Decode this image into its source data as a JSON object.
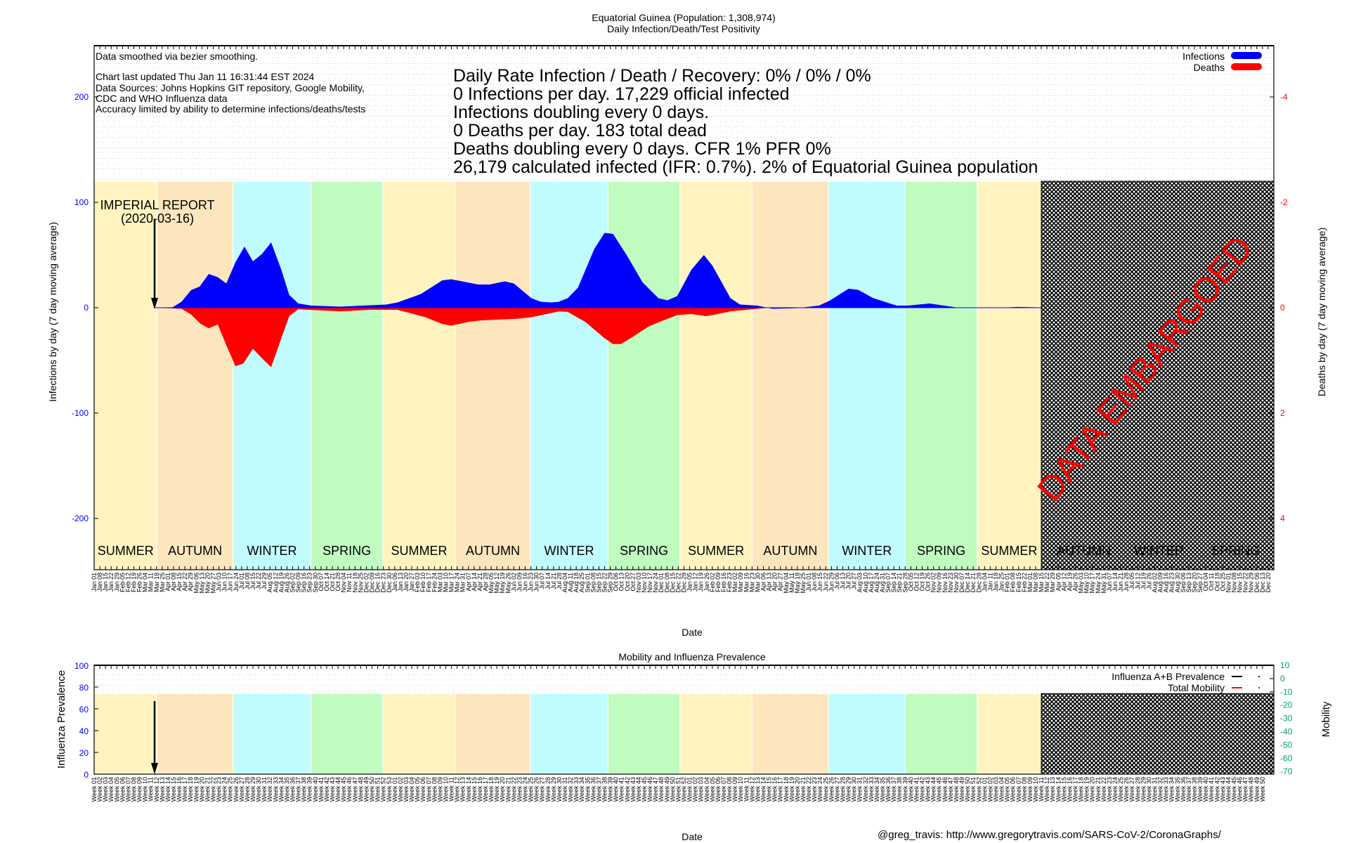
{
  "chart_data": [
    {
      "type": "area",
      "title": "Equatorial Guinea (Population: 1,308,974)",
      "subtitle": "Daily Infection/Death/Test Positivity",
      "xlabel": "Date",
      "ylabel": "Infections by day (7 day moving average)",
      "y2label": "Deaths by day (7 day moving average)",
      "x_unit": "weeks since 2020-01-01",
      "xlim": [
        0,
        208
      ],
      "ylim": [
        -250,
        245
      ],
      "y2lim": [
        5,
        -4.9
      ],
      "yticks": [
        "200",
        "100",
        "0",
        "-100",
        "-200"
      ],
      "ytick_values": [
        200,
        100,
        0,
        -100,
        -200
      ],
      "y2ticks": [
        "-4",
        "-2",
        "0",
        "2",
        "4"
      ],
      "y2tick_values": [
        -4,
        -2,
        0,
        2,
        4
      ],
      "grid": true,
      "legend_position": "top-right",
      "legend": [
        {
          "label": "Infections",
          "color": "#0000ff"
        },
        {
          "label": "Deaths",
          "color": "#ff0000"
        }
      ],
      "notes": [
        "Data smoothed via bezier smoothing.",
        "Chart last updated Thu Jan 11 16:31:44 EST 2024",
        "Data Sources: Johns Hopkins GIT repository, Google Mobility,",
        "CDC and WHO Influenza data",
        "Accuracy limited by ability to determine infections/deaths/tests"
      ],
      "stats": [
        "Daily Rate Infection / Death / Recovery: 0% / 0% / 0%",
        "0 Infections per day.  17,229 official infected",
        "Infections doubling every 0 days.",
        "0 Deaths per day.  183 total dead",
        "Deaths doubling every 0 days.  CFR 1%  PFR 0%",
        "26,179 calculated infected (IFR: 0.7%).  2% of Equatorial Guinea population"
      ],
      "annotation": {
        "line1": "IMPERIAL REPORT",
        "line2": "(2020-03-16)",
        "week": 10.6
      },
      "embargo": {
        "label": "DATA EMBARGOED",
        "start_week": 167,
        "end_week": 208
      },
      "series": [
        {
          "name": "Infections",
          "color": "#0000ff",
          "points": [
            [
              10.6,
              0
            ],
            [
              13.7,
              0
            ],
            [
              15.4,
              5.6
            ],
            [
              17.1,
              16.7
            ],
            [
              18.6,
              20
            ],
            [
              20.2,
              32
            ],
            [
              21.8,
              29
            ],
            [
              23.3,
              23
            ],
            [
              24.9,
              43
            ],
            [
              26.5,
              58
            ],
            [
              28,
              44
            ],
            [
              29.6,
              51
            ],
            [
              31.2,
              62
            ],
            [
              33,
              36
            ],
            [
              34.4,
              12
            ],
            [
              36,
              4
            ],
            [
              38.3,
              2
            ],
            [
              43.4,
              1
            ],
            [
              51.5,
              3
            ],
            [
              53.5,
              5
            ],
            [
              57.6,
              13
            ],
            [
              61.4,
              26
            ],
            [
              63,
              27
            ],
            [
              67.7,
              22
            ],
            [
              69.7,
              22
            ],
            [
              72.4,
              25
            ],
            [
              74,
              23
            ],
            [
              77.1,
              9
            ],
            [
              78.8,
              5.6
            ],
            [
              80.5,
              5
            ],
            [
              81.9,
              5.6
            ],
            [
              83.5,
              9
            ],
            [
              85.3,
              19
            ],
            [
              88.2,
              56
            ],
            [
              90,
              71
            ],
            [
              91.5,
              70
            ],
            [
              94,
              49
            ],
            [
              96.7,
              24
            ],
            [
              99.5,
              9
            ],
            [
              101.1,
              7
            ],
            [
              102.8,
              11
            ],
            [
              105.3,
              36
            ],
            [
              107.5,
              50
            ],
            [
              109,
              40
            ],
            [
              112.2,
              9
            ],
            [
              113.9,
              3
            ],
            [
              116.9,
              2
            ],
            [
              119.6,
              -1
            ],
            [
              123.7,
              -0.5
            ],
            [
              127.8,
              2
            ],
            [
              129.8,
              7
            ],
            [
              133,
              18
            ],
            [
              134.7,
              17
            ],
            [
              137.4,
              9
            ],
            [
              141.5,
              2
            ],
            [
              143.5,
              2
            ],
            [
              147.3,
              4
            ],
            [
              149.8,
              2
            ],
            [
              152.4,
              0
            ],
            [
              160,
              0
            ],
            [
              162.7,
              0.7
            ],
            [
              166,
              0.4
            ],
            [
              167.4,
              0
            ]
          ]
        },
        {
          "name": "Deaths",
          "color": "#ff0000",
          "points": [
            [
              10.6,
              0
            ],
            [
              15.4,
              0.02
            ],
            [
              17.1,
              0.13
            ],
            [
              18.8,
              0.31
            ],
            [
              20.2,
              0.39
            ],
            [
              21.8,
              0.32
            ],
            [
              23.3,
              0.71
            ],
            [
              24.9,
              1.11
            ],
            [
              26.3,
              1.06
            ],
            [
              28,
              0.78
            ],
            [
              29.6,
              0.96
            ],
            [
              31.2,
              1.13
            ],
            [
              33,
              0.58
            ],
            [
              34.4,
              0.16
            ],
            [
              36,
              0.03
            ],
            [
              43.4,
              0.07
            ],
            [
              48.6,
              0.04
            ],
            [
              53.5,
              0.04
            ],
            [
              58.4,
              0.18
            ],
            [
              61.4,
              0.31
            ],
            [
              63,
              0.34
            ],
            [
              66,
              0.27
            ],
            [
              68.3,
              0.24
            ],
            [
              74.5,
              0.21
            ],
            [
              77.1,
              0.18
            ],
            [
              82,
              0.07
            ],
            [
              83.5,
              0.08
            ],
            [
              86.6,
              0.27
            ],
            [
              90,
              0.58
            ],
            [
              91.5,
              0.69
            ],
            [
              92.9,
              0.69
            ],
            [
              95.3,
              0.53
            ],
            [
              97.7,
              0.36
            ],
            [
              99.7,
              0.27
            ],
            [
              102.8,
              0.14
            ],
            [
              105.3,
              0.12
            ],
            [
              107.9,
              0.16
            ],
            [
              109.5,
              0.13
            ],
            [
              112.2,
              0.07
            ],
            [
              116.9,
              0.02
            ],
            [
              119,
              0
            ]
          ]
        }
      ],
      "seasons": [
        {
          "label": "SUMMER",
          "start": 0,
          "end": 11.1,
          "color": "#fff4c0"
        },
        {
          "label": "AUTUMN",
          "start": 11.1,
          "end": 24.5,
          "color": "#fde6bd"
        },
        {
          "label": "WINTER",
          "start": 24.5,
          "end": 38.2,
          "color": "#c0fbfd"
        },
        {
          "label": "SPRING",
          "start": 38.2,
          "end": 50.9,
          "color": "#c0fcc0"
        },
        {
          "label": "SUMMER",
          "start": 50.9,
          "end": 63.7,
          "color": "#fff4c0"
        },
        {
          "label": "AUTUMN",
          "start": 63.7,
          "end": 76.9,
          "color": "#fde6bd"
        },
        {
          "label": "WINTER",
          "start": 76.9,
          "end": 90.6,
          "color": "#c0fbfd"
        },
        {
          "label": "SPRING",
          "start": 90.6,
          "end": 103.3,
          "color": "#c0fcc0"
        },
        {
          "label": "SUMMER",
          "start": 103.3,
          "end": 116,
          "color": "#fff4c0"
        },
        {
          "label": "AUTUMN",
          "start": 116,
          "end": 129.5,
          "color": "#fde6bd"
        },
        {
          "label": "WINTER",
          "start": 129.5,
          "end": 143,
          "color": "#c0fbfd"
        },
        {
          "label": "SPRING",
          "start": 143,
          "end": 155.7,
          "color": "#c0fcc0"
        },
        {
          "label": "SUMMER",
          "start": 155.7,
          "end": 167,
          "color": "#fff4c0"
        },
        {
          "label": "AUTUMN",
          "start": 168,
          "end": 181,
          "color": "#fde6bd"
        },
        {
          "label": "WINTER",
          "start": 181,
          "end": 194.5,
          "color": "#c0fbfd"
        },
        {
          "label": "SPRING",
          "start": 194.5,
          "end": 208,
          "color": "#c0fcc0"
        }
      ],
      "date_labels": [
        "Jan 01",
        "Jan 08",
        "Jan 15",
        "Jan 22",
        "Jan 29",
        "Feb 05",
        "Feb 12",
        "Feb 19",
        "Feb 26",
        "Mar 04",
        "Mar 11",
        "Mar 18",
        "Mar 25",
        "Apr 01",
        "Apr 08",
        "Apr 15",
        "Apr 22",
        "Apr 29",
        "May 06",
        "May 13",
        "May 20",
        "May 27",
        "Jun 03",
        "Jun 10",
        "Jun 17",
        "Jun 24",
        "Jul 01",
        "Jul 08",
        "Jul 15",
        "Jul 22",
        "Jul 29",
        "Aug 05",
        "Aug 12",
        "Aug 19",
        "Aug 26",
        "Sep 02",
        "Sep 09",
        "Sep 16",
        "Sep 23",
        "Sep 30",
        "Oct 07",
        "Oct 14",
        "Oct 21",
        "Oct 28",
        "Nov 04",
        "Nov 11",
        "Nov 18",
        "Nov 25",
        "Dec 02",
        "Dec 09",
        "Dec 16",
        "Dec 23",
        "Dec 30",
        "Jan 06",
        "Jan 13",
        "Jan 20",
        "Jan 27",
        "Feb 03",
        "Feb 10",
        "Feb 17",
        "Feb 24",
        "Mar 03",
        "Mar 10",
        "Mar 17",
        "Mar 24",
        "Mar 31",
        "Apr 07",
        "Apr 14",
        "Apr 21",
        "Apr 28",
        "May 05",
        "May 12",
        "May 19",
        "May 26",
        "Jun 02",
        "Jun 09",
        "Jun 16",
        "Jun 23",
        "Jun 30",
        "Jul 07",
        "Jul 14",
        "Jul 21",
        "Jul 28",
        "Aug 04",
        "Aug 11",
        "Aug 18",
        "Aug 25",
        "Sep 01",
        "Sep 08",
        "Sep 15",
        "Sep 22",
        "Sep 29",
        "Oct 06",
        "Oct 13",
        "Oct 20",
        "Oct 27",
        "Nov 03",
        "Nov 10",
        "Nov 17",
        "Nov 24",
        "Dec 01",
        "Dec 08",
        "Dec 15",
        "Dec 22",
        "Dec 29",
        "Jan 05",
        "Jan 12",
        "Jan 19",
        "Jan 26",
        "Feb 02",
        "Feb 09",
        "Feb 16",
        "Feb 23",
        "Mar 02",
        "Mar 09",
        "Mar 16",
        "Mar 23",
        "Mar 30",
        "Apr 06",
        "Apr 13",
        "Apr 20",
        "Apr 27",
        "May 04",
        "May 11",
        "May 18",
        "May 25",
        "Jun 01",
        "Jun 08",
        "Jun 15",
        "Jun 22",
        "Jun 29",
        "Jul 06",
        "Jul 13",
        "Jul 20",
        "Jul 27",
        "Aug 03",
        "Aug 10",
        "Aug 17",
        "Aug 24",
        "Aug 31",
        "Sep 07",
        "Sep 14",
        "Sep 21",
        "Sep 28",
        "Oct 05",
        "Oct 12",
        "Oct 19",
        "Oct 26",
        "Nov 02",
        "Nov 09",
        "Nov 16",
        "Nov 23",
        "Nov 30",
        "Dec 07",
        "Dec 14",
        "Dec 21",
        "Dec 28",
        "Jan 04",
        "Jan 11",
        "Jan 18",
        "Jan 25",
        "Feb 01",
        "Feb 08",
        "Feb 15",
        "Feb 22",
        "Mar 01",
        "Mar 08",
        "Mar 15",
        "Mar 22",
        "Mar 29",
        "Apr 05",
        "Apr 12",
        "Apr 19",
        "Apr 26",
        "May 03",
        "May 10",
        "May 17",
        "May 24",
        "May 31",
        "Jun 07",
        "Jun 14",
        "Jun 21",
        "Jun 28",
        "Jul 05",
        "Jul 12",
        "Jul 19",
        "Jul 26",
        "Aug 02",
        "Aug 09",
        "Aug 16",
        "Aug 23",
        "Aug 30",
        "Sep 06",
        "Sep 13",
        "Sep 20",
        "Sep 27",
        "Oct 04",
        "Oct 11",
        "Oct 18",
        "Oct 25",
        "Nov 01",
        "Nov 08",
        "Nov 15",
        "Nov 22",
        "Nov 29",
        "Dec 06",
        "Dec 13",
        "Dec 20"
      ]
    },
    {
      "type": "line",
      "title": "Mobility and Influenza Prevalence",
      "xlabel": "Date",
      "ylabel": "Influenza Prevalence",
      "y2label": "Mobility",
      "ylim": [
        0,
        100
      ],
      "y2lim": [
        -72,
        10
      ],
      "yticks": [
        "100",
        "80",
        "60",
        "40",
        "20",
        "0"
      ],
      "ytick_values": [
        100,
        80,
        60,
        40,
        20,
        0
      ],
      "y2ticks": [
        "10",
        "0",
        "-10",
        "-20",
        "-30",
        "-40",
        "-50",
        "-60",
        "-70"
      ],
      "y2tick_values": [
        10,
        0,
        -10,
        -20,
        -30,
        -40,
        -50,
        -60,
        -70
      ],
      "season_band_top": 74,
      "legend_position": "top-right",
      "legend": [
        {
          "label": "Influenza A+B Prevalence",
          "color": "#000000"
        },
        {
          "label": "Total Mobility",
          "color": "#ff0000"
        }
      ],
      "series": [
        {
          "name": "Influenza A+B Prevalence",
          "points": []
        },
        {
          "name": "Total Mobility",
          "points": []
        }
      ],
      "week_axis": {
        "prefix": "Week",
        "year_week_counts": [
          53,
          52,
          52,
          50
        ]
      }
    }
  ],
  "credits": "@greg_travis: http://www.gregorytravis.com/SARS-CoV-2/CoronaGraphs/"
}
